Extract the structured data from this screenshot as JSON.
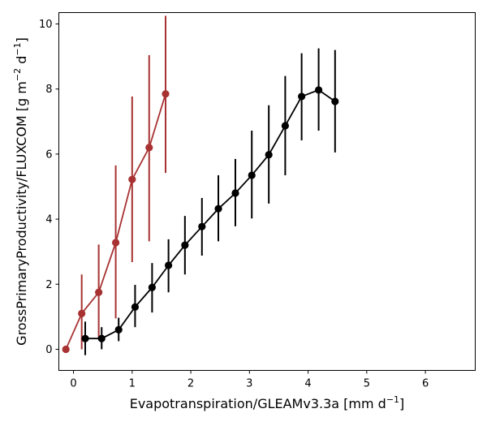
{
  "chart_data": {
    "type": "line",
    "xlabel": {
      "main": "Evapotranspiration/GLEAMv3.3a [mm d",
      "sup": "−1",
      "close": "]"
    },
    "ylabel": {
      "main": "GrossPrimaryProductivity/FLUXCOM [g m",
      "sup1": "−2",
      "mid": " d",
      "sup2": "−1",
      "close": "]"
    },
    "xlim": [
      -0.25,
      6.85
    ],
    "ylim": [
      -0.65,
      10.35
    ],
    "xticks": [
      0,
      1,
      2,
      3,
      4,
      5,
      6
    ],
    "yticks": [
      0,
      2,
      4,
      6,
      8,
      10
    ],
    "grid": false,
    "series": [
      {
        "color": "#a83232",
        "x": [
          -0.13,
          0.14,
          0.43,
          0.72,
          1.0,
          1.29,
          1.57
        ],
        "y": [
          0.0,
          1.1,
          1.75,
          3.28,
          5.22,
          6.2,
          7.85
        ],
        "yerr_low": [
          0.0,
          0.0,
          0.35,
          0.95,
          2.68,
          3.32,
          5.42
        ],
        "yerr_high": [
          0.0,
          2.3,
          3.22,
          5.65,
          7.77,
          9.04,
          10.25
        ]
      },
      {
        "color": "#000000",
        "x": [
          0.2,
          0.48,
          0.77,
          1.05,
          1.34,
          1.62,
          1.9,
          2.19,
          2.47,
          2.76,
          3.04,
          3.33,
          3.61,
          3.89,
          4.18,
          4.46
        ],
        "y": [
          0.33,
          0.33,
          0.6,
          1.3,
          1.9,
          2.58,
          3.2,
          3.77,
          4.32,
          4.8,
          5.35,
          5.98,
          6.87,
          7.77,
          7.97,
          7.62
        ],
        "yerr_low": [
          -0.18,
          0.0,
          0.25,
          0.68,
          1.13,
          1.75,
          2.3,
          2.88,
          3.32,
          3.78,
          4.02,
          4.48,
          5.35,
          6.42,
          6.72,
          6.05
        ],
        "yerr_high": [
          0.85,
          0.68,
          0.97,
          1.98,
          2.65,
          3.38,
          4.1,
          4.65,
          5.35,
          5.85,
          6.72,
          7.5,
          8.4,
          9.1,
          9.25,
          9.2
        ]
      }
    ]
  }
}
